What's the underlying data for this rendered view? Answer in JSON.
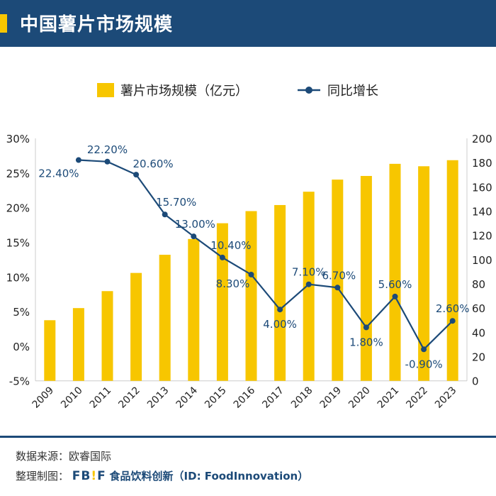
{
  "header": {
    "title": "中国薯片市场规模"
  },
  "colors": {
    "bar": "#f7c600",
    "line": "#1c4a78",
    "header": "#1c4a78"
  },
  "chart_data": {
    "type": "bar+line",
    "categories": [
      "2009",
      "2010",
      "2011",
      "2012",
      "2013",
      "2014",
      "2015",
      "2016",
      "2017",
      "2018",
      "2019",
      "2020",
      "2021",
      "2022",
      "2023"
    ],
    "series": [
      {
        "name": "薯片市场规模（亿元）",
        "type": "bar",
        "axis": "right",
        "values": [
          50,
          60,
          74,
          89,
          104,
          117,
          130,
          140,
          145,
          156,
          166,
          169,
          179,
          177,
          182
        ]
      },
      {
        "name": "同比增长",
        "type": "line",
        "axis": "left",
        "values": [
          null,
          22.4,
          22.2,
          20.6,
          15.7,
          13.0,
          10.4,
          8.3,
          4.0,
          7.1,
          6.7,
          1.8,
          5.6,
          -0.9,
          2.6
        ],
        "labels": [
          "",
          "22.40%",
          "22.20%",
          "20.60%",
          "15.70%",
          "13.00%",
          "10.40%",
          "8.30%",
          "4.00%",
          "7.10%",
          "6.70%",
          "1.80%",
          "5.60%",
          "-0.90%",
          "2.60%"
        ]
      }
    ],
    "left_axis": {
      "ylim": [
        -5,
        30
      ],
      "ticks": [
        "-5%",
        "0%",
        "5%",
        "10%",
        "15%",
        "20%",
        "25%",
        "30%"
      ]
    },
    "right_axis": {
      "ylim": [
        0,
        200
      ],
      "ticks": [
        "0",
        "20",
        "40",
        "60",
        "80",
        "100",
        "120",
        "140",
        "160",
        "180",
        "200"
      ]
    },
    "legend": "top",
    "grid": false
  },
  "footer": {
    "source_label": "数据来源：",
    "source": "欧睿国际",
    "maker_label": "整理制图：",
    "logo": "FB!F",
    "brand": "食品饮料创新（ID: FoodInnovation）"
  }
}
